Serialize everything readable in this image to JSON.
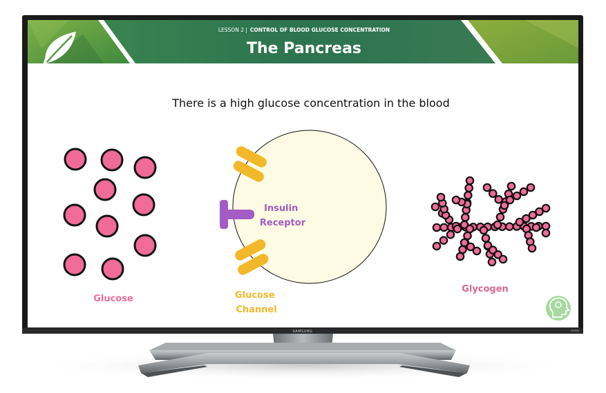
{
  "header": {
    "lesson_label": "LESSON 2 |",
    "lesson_title": "CONTROL OF BLOOD GLUCOSE CONCENTRATION",
    "page_title": "The Pancreas"
  },
  "slide": {
    "statement": "There is a high glucose concentration in the blood",
    "glucose_label": "Glucose",
    "insulin_receptor_label_line1": "Insulin",
    "insulin_receptor_label_line2": "Receptor",
    "glucose_channel_label_line1": "Glucose",
    "glucose_channel_label_line2": "Channel",
    "glycogen_label": "Glycogen"
  },
  "tv": {
    "brand": "SAMSUNG"
  },
  "colors": {
    "header_green": "#2f7a4a",
    "glucose_pink": "#f06b97",
    "channel_gold": "#f2b82a",
    "receptor_purple": "#a35cc4",
    "glycogen_pink": "#d9678d",
    "cell_fill": "#fdfbe3"
  },
  "icons": {
    "header_logo": "leaf-icon",
    "corner_logo": "head-brain-icon"
  }
}
